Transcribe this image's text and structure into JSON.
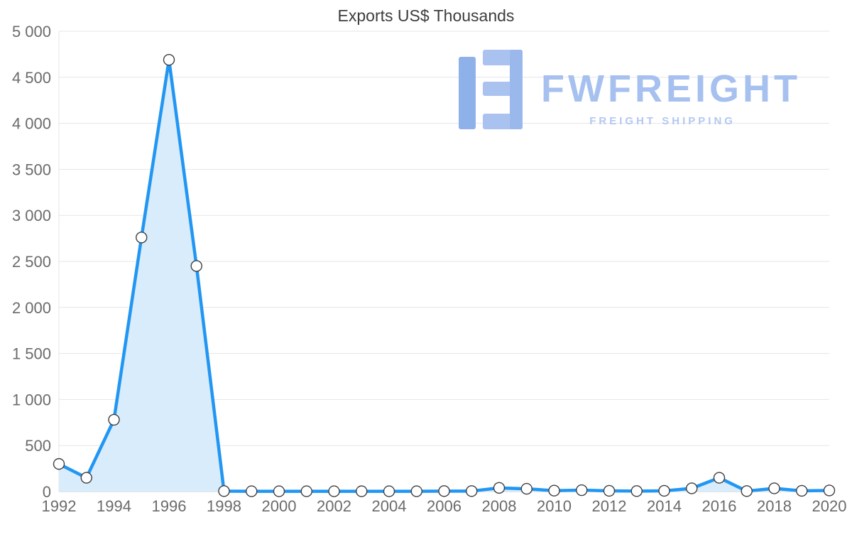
{
  "watermark": {
    "brand": "FWFREIGHT",
    "tagline": "FREIGHT SHIPPING",
    "color_primary": "#a6c0ef",
    "color_secondary": "#b3c8f1"
  },
  "chart_data": {
    "type": "area",
    "title": "Exports US$ Thousands",
    "xlabel": "",
    "ylabel": "",
    "x": [
      1992,
      1993,
      1994,
      1995,
      1996,
      1997,
      1998,
      1999,
      2000,
      2001,
      2002,
      2003,
      2004,
      2005,
      2006,
      2007,
      2008,
      2009,
      2010,
      2011,
      2012,
      2013,
      2014,
      2015,
      2016,
      2017,
      2018,
      2019,
      2020
    ],
    "values": [
      300,
      150,
      780,
      2760,
      4690,
      2450,
      5,
      3,
      3,
      3,
      3,
      3,
      3,
      3,
      5,
      5,
      40,
      30,
      10,
      15,
      8,
      5,
      8,
      35,
      150,
      5,
      35,
      8,
      12
    ],
    "ylim": [
      0,
      5000
    ],
    "y_ticks": [
      0,
      500,
      1000,
      1500,
      2000,
      2500,
      3000,
      3500,
      4000,
      4500,
      5000
    ],
    "y_tick_labels": [
      "0",
      "500",
      "1 000",
      "1 500",
      "2 000",
      "2 500",
      "3 000",
      "3 500",
      "4 000",
      "4 500",
      "5 000"
    ],
    "x_tick_labels": [
      "1992",
      "1994",
      "1996",
      "1998",
      "2000",
      "2002",
      "2004",
      "2006",
      "2008",
      "2010",
      "2012",
      "2014",
      "2016",
      "2018",
      "2020"
    ],
    "grid": "horizontal",
    "legend": "none",
    "line_color": "#2196f3",
    "fill_color": "#d9ecfb",
    "marker_fill": "#ffffff",
    "marker_stroke": "#3f3f3f",
    "grid_color": "#e5e5e5",
    "axis_line_color": "#c9c9c9",
    "tick_text_color": "#6b6b6b"
  }
}
